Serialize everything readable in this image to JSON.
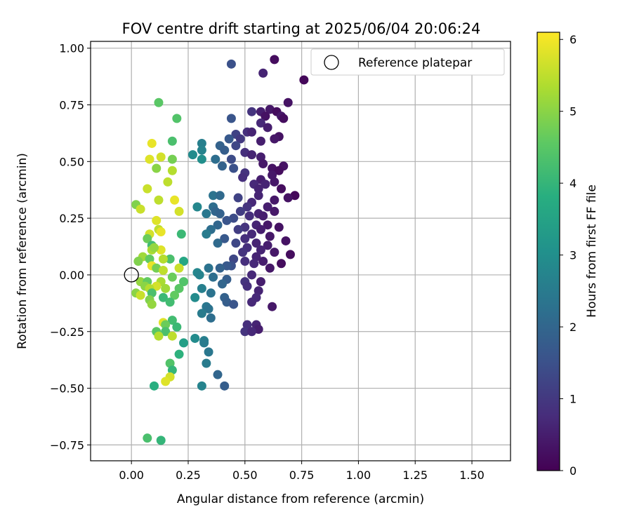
{
  "chart_data": {
    "type": "scatter",
    "title": "FOV centre drift starting at 2025/06/04 20:06:24",
    "xlabel": "Angular distance from reference (arcmin)",
    "ylabel": "Rotation from reference (arcmin)",
    "xlim": [
      -0.18,
      1.67
    ],
    "ylim": [
      -0.82,
      1.03
    ],
    "xticks": [
      0.0,
      0.25,
      0.5,
      0.75,
      1.0,
      1.25,
      1.5
    ],
    "xtick_labels": [
      "0.00",
      "0.25",
      "0.50",
      "0.75",
      "1.00",
      "1.25",
      "1.50"
    ],
    "yticks": [
      -0.75,
      -0.5,
      -0.25,
      0.0,
      0.25,
      0.5,
      0.75,
      1.0
    ],
    "ytick_labels": [
      "−0.75",
      "−0.50",
      "−0.25",
      "0.00",
      "0.25",
      "0.50",
      "0.75",
      "1.00"
    ],
    "grid": true,
    "legend": {
      "label": "Reference platepar",
      "position": "top-right"
    },
    "reference_point": [
      0.0,
      0.0
    ],
    "colorbar": {
      "label": "Hours from first FF file",
      "range": [
        0,
        6.1
      ],
      "ticks": [
        0,
        1,
        2,
        3,
        4,
        5,
        6
      ],
      "colormap": "viridis"
    },
    "points": [
      [
        0.63,
        0.95,
        0.2
      ],
      [
        0.44,
        0.93,
        1.5
      ],
      [
        0.58,
        0.89,
        0.6
      ],
      [
        0.76,
        0.86,
        0.1
      ],
      [
        0.69,
        0.76,
        0.3
      ],
      [
        0.61,
        0.73,
        0.4
      ],
      [
        0.57,
        0.72,
        0.5
      ],
      [
        0.53,
        0.72,
        0.9
      ],
      [
        0.64,
        0.72,
        0.2
      ],
      [
        0.59,
        0.7,
        0.3
      ],
      [
        0.66,
        0.7,
        0.4
      ],
      [
        0.67,
        0.69,
        0.2
      ],
      [
        0.44,
        0.69,
        1.6
      ],
      [
        0.57,
        0.67,
        0.7
      ],
      [
        0.6,
        0.65,
        0.5
      ],
      [
        0.51,
        0.63,
        0.8
      ],
      [
        0.53,
        0.63,
        0.6
      ],
      [
        0.46,
        0.62,
        1.2
      ],
      [
        0.65,
        0.61,
        0.3
      ],
      [
        0.63,
        0.6,
        0.4
      ],
      [
        0.48,
        0.6,
        1.0
      ],
      [
        0.43,
        0.6,
        1.7
      ],
      [
        0.57,
        0.59,
        0.5
      ],
      [
        0.31,
        0.58,
        2.6
      ],
      [
        0.46,
        0.57,
        1.3
      ],
      [
        0.39,
        0.57,
        1.9
      ],
      [
        0.41,
        0.55,
        1.8
      ],
      [
        0.31,
        0.55,
        2.7
      ],
      [
        0.5,
        0.54,
        0.8
      ],
      [
        0.53,
        0.53,
        0.6
      ],
      [
        0.57,
        0.52,
        0.5
      ],
      [
        0.27,
        0.53,
        2.9
      ],
      [
        0.37,
        0.51,
        2.2
      ],
      [
        0.44,
        0.51,
        1.4
      ],
      [
        0.31,
        0.51,
        3.0
      ],
      [
        0.58,
        0.49,
        0.4
      ],
      [
        0.67,
        0.48,
        0.3
      ],
      [
        0.62,
        0.47,
        0.3
      ],
      [
        0.4,
        0.48,
        1.9
      ],
      [
        0.45,
        0.47,
        1.5
      ],
      [
        0.65,
        0.46,
        0.2
      ],
      [
        0.5,
        0.45,
        0.9
      ],
      [
        0.62,
        0.44,
        0.4
      ],
      [
        0.49,
        0.43,
        0.8
      ],
      [
        0.57,
        0.42,
        0.5
      ],
      [
        0.63,
        0.41,
        0.4
      ],
      [
        0.59,
        0.4,
        0.6
      ],
      [
        0.54,
        0.4,
        0.7
      ],
      [
        0.56,
        0.38,
        0.6
      ],
      [
        0.66,
        0.38,
        0.2
      ],
      [
        0.72,
        0.35,
        0.1
      ],
      [
        0.36,
        0.35,
        2.3
      ],
      [
        0.39,
        0.35,
        2.1
      ],
      [
        0.56,
        0.35,
        0.6
      ],
      [
        0.47,
        0.34,
        1.2
      ],
      [
        0.69,
        0.34,
        0.3
      ],
      [
        0.63,
        0.33,
        0.4
      ],
      [
        0.53,
        0.32,
        0.7
      ],
      [
        0.29,
        0.3,
        2.8
      ],
      [
        0.51,
        0.3,
        0.9
      ],
      [
        0.36,
        0.3,
        2.2
      ],
      [
        0.6,
        0.3,
        0.5
      ],
      [
        0.37,
        0.28,
        2.0
      ],
      [
        0.48,
        0.28,
        1.1
      ],
      [
        0.63,
        0.28,
        0.4
      ],
      [
        0.39,
        0.27,
        1.9
      ],
      [
        0.56,
        0.27,
        0.6
      ],
      [
        0.33,
        0.27,
        2.4
      ],
      [
        0.52,
        0.26,
        0.8
      ],
      [
        0.58,
        0.26,
        0.5
      ],
      [
        0.45,
        0.25,
        1.4
      ],
      [
        0.42,
        0.24,
        1.6
      ],
      [
        0.38,
        0.22,
        2.0
      ],
      [
        0.6,
        0.22,
        0.4
      ],
      [
        0.55,
        0.22,
        0.6
      ],
      [
        0.5,
        0.21,
        0.9
      ],
      [
        0.65,
        0.21,
        0.3
      ],
      [
        0.35,
        0.2,
        2.2
      ],
      [
        0.47,
        0.2,
        1.1
      ],
      [
        0.57,
        0.2,
        0.5
      ],
      [
        0.33,
        0.18,
        2.5
      ],
      [
        0.53,
        0.18,
        0.7
      ],
      [
        0.61,
        0.17,
        0.4
      ],
      [
        0.5,
        0.16,
        0.8
      ],
      [
        0.41,
        0.16,
        1.7
      ],
      [
        0.38,
        0.14,
        2.1
      ],
      [
        0.46,
        0.14,
        1.3
      ],
      [
        0.55,
        0.14,
        0.6
      ],
      [
        0.68,
        0.15,
        0.3
      ],
      [
        0.6,
        0.13,
        0.5
      ],
      [
        0.51,
        0.12,
        0.8
      ],
      [
        0.57,
        0.11,
        0.6
      ],
      [
        0.49,
        0.1,
        0.9
      ],
      [
        0.63,
        0.1,
        0.4
      ],
      [
        0.7,
        0.09,
        0.2
      ],
      [
        0.55,
        0.08,
        0.6
      ],
      [
        0.45,
        0.07,
        1.3
      ],
      [
        0.5,
        0.06,
        0.8
      ],
      [
        0.58,
        0.06,
        0.5
      ],
      [
        0.54,
        0.05,
        0.7
      ],
      [
        0.66,
        0.05,
        0.2
      ],
      [
        0.44,
        0.04,
        1.5
      ],
      [
        0.42,
        0.04,
        1.7
      ],
      [
        0.39,
        0.03,
        1.9
      ],
      [
        0.34,
        0.03,
        2.3
      ],
      [
        0.61,
        0.03,
        0.4
      ],
      [
        0.29,
        0.01,
        2.8
      ],
      [
        0.3,
        0.0,
        2.7
      ],
      [
        0.53,
        0.0,
        0.7
      ],
      [
        0.36,
        -0.01,
        2.2
      ],
      [
        0.42,
        -0.02,
        1.8
      ],
      [
        0.5,
        -0.03,
        0.9
      ],
      [
        0.57,
        -0.03,
        0.5
      ],
      [
        0.4,
        -0.04,
        2.0
      ],
      [
        0.51,
        -0.05,
        0.8
      ],
      [
        0.56,
        -0.07,
        0.6
      ],
      [
        0.31,
        -0.06,
        2.6
      ],
      [
        0.35,
        -0.08,
        2.3
      ],
      [
        0.55,
        -0.1,
        0.7
      ],
      [
        0.28,
        -0.1,
        2.9
      ],
      [
        0.41,
        -0.1,
        1.9
      ],
      [
        0.53,
        -0.12,
        0.7
      ],
      [
        0.42,
        -0.12,
        1.8
      ],
      [
        0.45,
        -0.13,
        1.6
      ],
      [
        0.33,
        -0.14,
        2.4
      ],
      [
        0.62,
        -0.14,
        0.4
      ],
      [
        0.34,
        -0.15,
        2.3
      ],
      [
        0.31,
        -0.17,
        2.5
      ],
      [
        0.35,
        -0.19,
        2.2
      ],
      [
        0.55,
        -0.22,
        0.6
      ],
      [
        0.51,
        -0.22,
        0.8
      ],
      [
        0.56,
        -0.24,
        0.5
      ],
      [
        0.5,
        -0.25,
        0.9
      ],
      [
        0.53,
        -0.25,
        0.7
      ],
      [
        0.28,
        -0.28,
        2.9
      ],
      [
        0.32,
        -0.29,
        2.6
      ],
      [
        0.32,
        -0.3,
        2.5
      ],
      [
        0.34,
        -0.34,
        2.4
      ],
      [
        0.33,
        -0.39,
        2.5
      ],
      [
        0.38,
        -0.44,
        2.0
      ],
      [
        0.31,
        -0.49,
        2.7
      ],
      [
        0.41,
        -0.49,
        1.8
      ],
      [
        0.12,
        0.76,
        4.5
      ],
      [
        0.2,
        0.69,
        4.4
      ],
      [
        0.09,
        0.58,
        5.9
      ],
      [
        0.18,
        0.59,
        4.3
      ],
      [
        0.08,
        0.51,
        5.8
      ],
      [
        0.13,
        0.52,
        5.7
      ],
      [
        0.18,
        0.51,
        4.8
      ],
      [
        0.11,
        0.47,
        5.0
      ],
      [
        0.18,
        0.46,
        5.4
      ],
      [
        0.16,
        0.41,
        5.5
      ],
      [
        0.07,
        0.38,
        5.6
      ],
      [
        0.12,
        0.33,
        5.5
      ],
      [
        0.19,
        0.33,
        5.9
      ],
      [
        0.02,
        0.31,
        4.9
      ],
      [
        0.04,
        0.29,
        5.6
      ],
      [
        0.21,
        0.28,
        5.7
      ],
      [
        0.11,
        0.24,
        5.8
      ],
      [
        0.12,
        0.2,
        5.5
      ],
      [
        0.08,
        0.18,
        5.7
      ],
      [
        0.13,
        0.19,
        5.9
      ],
      [
        0.22,
        0.18,
        4.1
      ],
      [
        0.07,
        0.16,
        4.7
      ],
      [
        0.09,
        0.13,
        4.2
      ],
      [
        0.09,
        0.11,
        5.3
      ],
      [
        0.13,
        0.11,
        5.8
      ],
      [
        0.1,
        0.12,
        5.1
      ],
      [
        0.05,
        0.08,
        5.2
      ],
      [
        0.08,
        0.07,
        4.6
      ],
      [
        0.17,
        0.07,
        4.3
      ],
      [
        0.03,
        0.06,
        4.9
      ],
      [
        0.14,
        0.07,
        5.4
      ],
      [
        0.23,
        0.06,
        3.6
      ],
      [
        0.09,
        0.04,
        5.9
      ],
      [
        0.11,
        0.03,
        4.8
      ],
      [
        0.21,
        0.03,
        5.6
      ],
      [
        0.14,
        0.02,
        5.5
      ],
      [
        0.18,
        -0.01,
        4.7
      ],
      [
        0.04,
        -0.03,
        5.1
      ],
      [
        0.07,
        -0.03,
        4.6
      ],
      [
        0.13,
        -0.03,
        5.3
      ],
      [
        0.23,
        -0.03,
        4.4
      ],
      [
        0.11,
        -0.05,
        5.7
      ],
      [
        0.06,
        -0.05,
        5.0
      ],
      [
        0.08,
        -0.06,
        5.4
      ],
      [
        0.15,
        -0.06,
        5.2
      ],
      [
        0.21,
        -0.06,
        4.5
      ],
      [
        0.02,
        -0.08,
        5.0
      ],
      [
        0.09,
        -0.08,
        4.3
      ],
      [
        0.04,
        -0.09,
        5.6
      ],
      [
        0.14,
        -0.1,
        4.1
      ],
      [
        0.19,
        -0.09,
        4.6
      ],
      [
        0.08,
        -0.11,
        4.9
      ],
      [
        0.17,
        -0.12,
        4.2
      ],
      [
        0.09,
        -0.13,
        5.1
      ],
      [
        0.14,
        -0.21,
        5.8
      ],
      [
        0.18,
        -0.2,
        4.2
      ],
      [
        0.15,
        -0.22,
        4.7
      ],
      [
        0.2,
        -0.23,
        4.1
      ],
      [
        0.11,
        -0.25,
        4.5
      ],
      [
        0.15,
        -0.25,
        4.3
      ],
      [
        0.12,
        -0.27,
        5.4
      ],
      [
        0.18,
        -0.27,
        5.5
      ],
      [
        0.23,
        -0.3,
        3.4
      ],
      [
        0.21,
        -0.35,
        3.9
      ],
      [
        0.17,
        -0.39,
        4.4
      ],
      [
        0.18,
        -0.42,
        4.0
      ],
      [
        0.17,
        -0.45,
        5.7
      ],
      [
        0.15,
        -0.47,
        5.8
      ],
      [
        0.1,
        -0.49,
        3.8
      ],
      [
        0.07,
        -0.72,
        4.3
      ],
      [
        0.13,
        -0.73,
        4.0
      ]
    ]
  }
}
